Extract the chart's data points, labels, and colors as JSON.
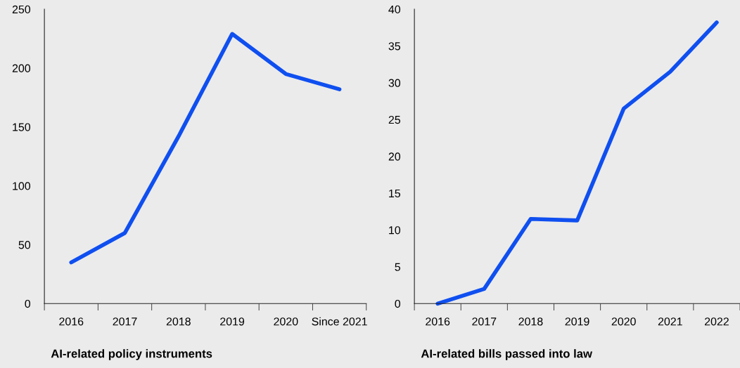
{
  "chart_data": [
    {
      "type": "line",
      "xlabel": "AI-related policy instruments",
      "categories": [
        "2016",
        "2017",
        "2018",
        "2019",
        "2020",
        "Since 2021"
      ],
      "series": [
        {
          "color": "#0f4ff0",
          "values": [
            35,
            60,
            142,
            229,
            195,
            182
          ]
        }
      ],
      "ylim": [
        0,
        250
      ],
      "yticks": [
        0,
        50,
        100,
        150,
        200,
        250
      ],
      "grid": false,
      "legend": false,
      "marker": "none",
      "line_style": "solid"
    },
    {
      "type": "line",
      "xlabel": "AI-related bills passed into law",
      "categories": [
        "2016",
        "2017",
        "2018",
        "2019",
        "2020",
        "2021",
        "2022"
      ],
      "series": [
        {
          "color": "#0f4ff0",
          "values": [
            0,
            2,
            11.5,
            11.3,
            26.5,
            31.5,
            38.2
          ]
        }
      ],
      "ylim": [
        0,
        40
      ],
      "yticks": [
        0,
        5,
        10,
        15,
        20,
        25,
        30,
        35,
        40
      ],
      "grid": false,
      "legend": false,
      "marker": "none",
      "line_style": "solid"
    }
  ]
}
